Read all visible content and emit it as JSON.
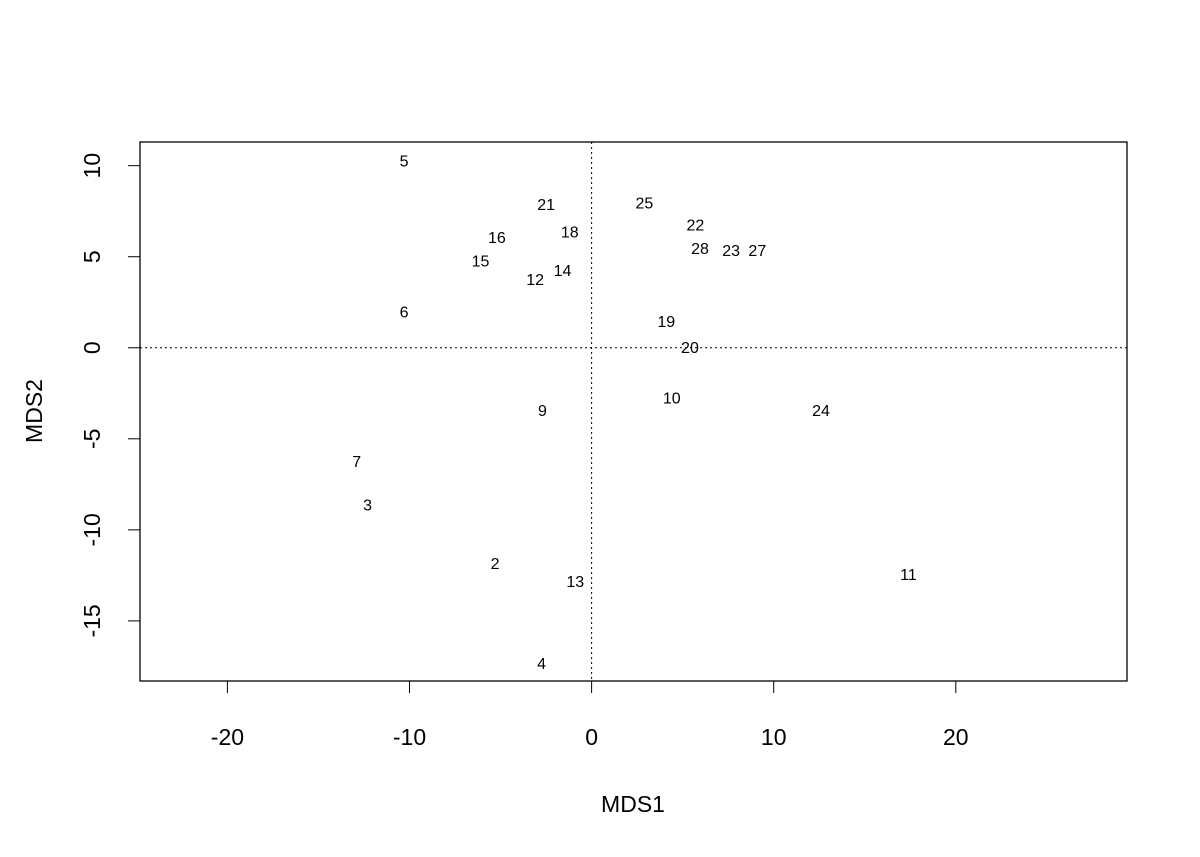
{
  "chart_data": {
    "type": "scatter",
    "xlabel": "MDS1",
    "ylabel": "MDS2",
    "xlim": [
      -24.8,
      29.4
    ],
    "ylim": [
      -18.3,
      11.3
    ],
    "xticks": [
      -20,
      -10,
      0,
      10,
      20
    ],
    "yticks": [
      -15,
      -10,
      -5,
      0,
      5,
      10
    ],
    "xtick_labels": [
      "-20",
      "-10",
      "0",
      "10",
      "20"
    ],
    "ytick_labels": [
      "-15",
      "-10",
      "-5",
      "0",
      "5",
      "10"
    ],
    "reference_lines": {
      "x": 0,
      "y": 0,
      "style": "dotted"
    },
    "grid": false,
    "points": [
      {
        "label": "5",
        "x": -10.3,
        "y": 10.2
      },
      {
        "label": "21",
        "x": -2.5,
        "y": 7.8
      },
      {
        "label": "25",
        "x": 2.9,
        "y": 7.9
      },
      {
        "label": "16",
        "x": -5.2,
        "y": 6.0
      },
      {
        "label": "18",
        "x": -1.2,
        "y": 6.3
      },
      {
        "label": "22",
        "x": 5.7,
        "y": 6.3
      },
      {
        "label": "28",
        "x": 6.5,
        "y": 5.5
      },
      {
        "label": "23",
        "x": 7.0,
        "y": 5.4
      },
      {
        "label": "27",
        "x": 9.1,
        "y": 5.3
      },
      {
        "label": "15",
        "x": -6.1,
        "y": 4.7
      },
      {
        "label": "12",
        "x": -3.1,
        "y": 3.7
      },
      {
        "label": "14",
        "x": -1.6,
        "y": 4.2
      },
      {
        "label": "6",
        "x": -10.3,
        "y": 1.9
      },
      {
        "label": "19",
        "x": 4.1,
        "y": 1.4
      },
      {
        "label": "20",
        "x": 5.4,
        "y": -0.05
      },
      {
        "label": "9",
        "x": -2.7,
        "y": -3.5
      },
      {
        "label": "10",
        "x": 4.4,
        "y": -2.8
      },
      {
        "label": "24",
        "x": 12.6,
        "y": -3.5
      },
      {
        "label": "7",
        "x": -12.9,
        "y": -6.3
      },
      {
        "label": "3",
        "x": -12.3,
        "y": -8.7
      },
      {
        "label": "2",
        "x": -5.3,
        "y": -11.9
      },
      {
        "label": "13",
        "x": -0.9,
        "y": -12.9
      },
      {
        "label": "11",
        "x": 17.4,
        "y": -12.5
      },
      {
        "label": "4",
        "x": -2.75,
        "y": -17.4
      }
    ]
  }
}
